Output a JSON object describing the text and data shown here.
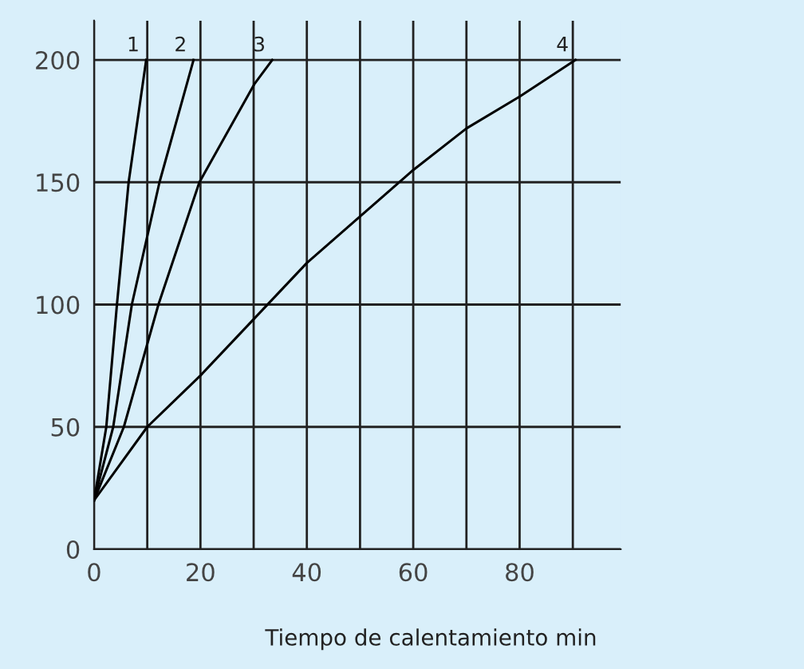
{
  "chart_data": {
    "type": "line",
    "xlabel": "Tiempo de calentamiento min",
    "series": [
      {
        "name": "1",
        "color": "#000000",
        "x": [
          0,
          2.3,
          4.3,
          6.5,
          9.8
        ],
        "values": [
          20,
          50,
          100,
          150,
          200
        ]
      },
      {
        "name": "2",
        "color": "#000000",
        "x": [
          0,
          3.6,
          7.1,
          12.3,
          18.7
        ],
        "values": [
          20,
          50,
          100,
          150,
          200
        ]
      },
      {
        "name": "3",
        "color": "#000000",
        "x": [
          0,
          5.6,
          12.1,
          19.8,
          30.1,
          33.5
        ],
        "values": [
          20,
          50,
          100,
          150,
          190,
          200
        ]
      },
      {
        "name": "4",
        "color": "#000000",
        "x": [
          0,
          10,
          20,
          30,
          40,
          50,
          60,
          70,
          80,
          90.5
        ],
        "values": [
          20,
          50,
          71,
          94,
          117,
          136,
          155,
          172,
          185,
          200
        ]
      }
    ],
    "xlim": [
      0,
      99
    ],
    "ylim": [
      0,
      216
    ],
    "xticks": [
      0,
      {
        "value": 10,
        "label": null
      },
      20,
      {
        "value": 30,
        "label": null
      },
      40,
      {
        "value": 50,
        "label": null
      },
      60,
      {
        "value": 70,
        "label": null
      },
      80,
      {
        "value": 90,
        "label": null
      }
    ],
    "yticks": [
      0,
      50,
      100,
      150,
      200
    ],
    "grid": true,
    "marker": "none",
    "line_style": "solid"
  }
}
